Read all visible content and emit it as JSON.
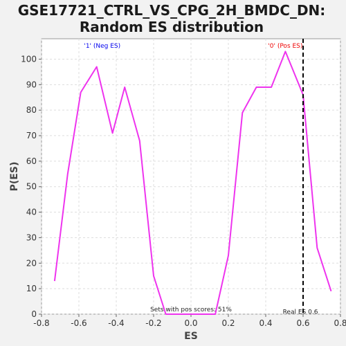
{
  "chart_data": {
    "type": "line",
    "title": "GSE17721_CTRL_VS_CPG_2H_BMDC_DN:",
    "subtitle": "Random ES distribution",
    "xlabel": "ES",
    "ylabel": "P(ES)",
    "xlim": [
      -0.8,
      0.8
    ],
    "ylim": [
      0,
      108
    ],
    "xticks": [
      -0.8,
      -0.6,
      -0.4,
      -0.2,
      0.0,
      0.2,
      0.4,
      0.6,
      0.8
    ],
    "xtick_labels": [
      "-0.8",
      "-0.6",
      "-0.4",
      "-0.2",
      "0.0",
      "0.2",
      "0.4",
      "0.6",
      "0.8"
    ],
    "yticks": [
      0,
      10,
      20,
      30,
      40,
      50,
      60,
      70,
      80,
      90,
      100
    ],
    "ytick_labels": [
      "0",
      "10",
      "20",
      "30",
      "40",
      "50",
      "60",
      "70",
      "80",
      "90",
      "100"
    ],
    "grid": true,
    "series": [
      {
        "color": "#ee33ee",
        "x": [
          -0.73,
          -0.66,
          -0.59,
          -0.505,
          -0.42,
          -0.355,
          -0.275,
          -0.2,
          -0.135,
          -0.06,
          0.03,
          0.13,
          0.2,
          0.275,
          0.35,
          0.43,
          0.505,
          0.6,
          0.675,
          0.75
        ],
        "y": [
          13,
          55,
          87,
          97,
          71,
          89,
          68,
          15,
          0,
          0,
          0,
          0,
          23,
          79,
          89,
          89,
          103,
          86,
          26,
          9
        ]
      }
    ],
    "real_es": 0.6,
    "annotations": {
      "neg_label": "'1' (Neg ES)",
      "neg_color": "#0000ee",
      "pos_label": "'0' (Pos ES)",
      "pos_color": "#ee0000",
      "pos_scores_text": "Sets with pos scores: 51%",
      "real_es_text": "Real ES 0.6"
    }
  }
}
